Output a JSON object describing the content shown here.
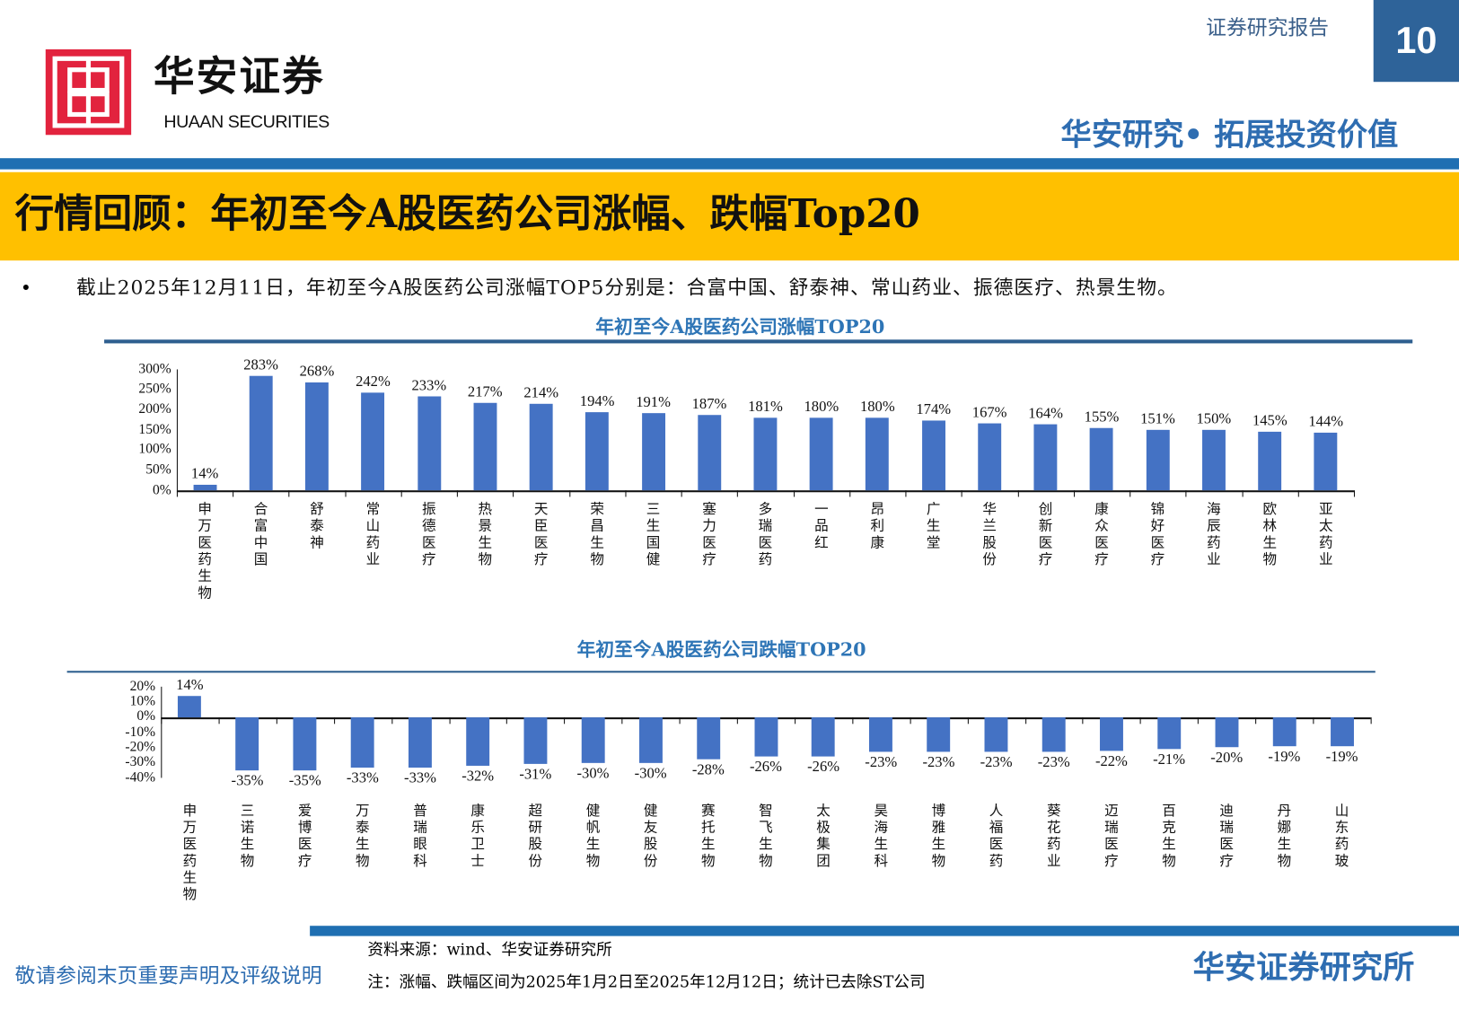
{
  "header": {
    "logo_cn": "华安证券",
    "logo_en": "HUAAN SECURITIES",
    "report_type": "证券研究报告",
    "page_number": "10",
    "slogan": "华安研究• 拓展投资价值"
  },
  "title": "行情回顾：年初至今A股医药公司涨幅、跌幅Top20",
  "summary": {
    "bullet": "•",
    "text": "截止2025年12月11日，年初至今A股医药公司涨幅TOP5分别是：合富中国、舒泰神、常山药业、振德医疗、热景生物。"
  },
  "chart_data": [
    {
      "type": "bar",
      "title": "年初至今A股医药公司涨幅TOP20",
      "ylim": [
        0,
        300
      ],
      "yticks": [
        "300%",
        "250%",
        "200%",
        "150%",
        "100%",
        "50%",
        "0%"
      ],
      "ytick_values": [
        300,
        250,
        200,
        150,
        100,
        50,
        0
      ],
      "categories": [
        "申万医药生物",
        "合富中国",
        "舒泰神",
        "常山药业",
        "振德医疗",
        "热景生物",
        "天臣医疗",
        "荣昌生物",
        "三生国健",
        "塞力医疗",
        "多瑞医药",
        "一品红",
        "昂利康",
        "广生堂",
        "华兰股份",
        "创新医疗",
        "康众医疗",
        "锦好医疗",
        "海辰药业",
        "欧林生物",
        "亚太药业"
      ],
      "values": [
        14,
        283,
        268,
        242,
        233,
        217,
        214,
        194,
        191,
        187,
        181,
        180,
        180,
        174,
        167,
        164,
        155,
        151,
        150,
        145,
        144
      ],
      "labels": [
        "14%",
        "283%",
        "268%",
        "242%",
        "233%",
        "217%",
        "214%",
        "194%",
        "191%",
        "187%",
        "181%",
        "180%",
        "180%",
        "174%",
        "167%",
        "164%",
        "155%",
        "151%",
        "150%",
        "145%",
        "144%"
      ],
      "color": "#4472c4"
    },
    {
      "type": "bar",
      "title": "年初至今A股医药公司跌幅TOP20",
      "ylim": [
        -40,
        20
      ],
      "yticks": [
        "20%",
        "10%",
        "0%",
        "-10%",
        "-20%",
        "-30%",
        "-40%"
      ],
      "ytick_values": [
        20,
        10,
        0,
        -10,
        -20,
        -30,
        -40
      ],
      "categories": [
        "申万医药生物",
        "三诺生物",
        "爱博医疗",
        "万泰生物",
        "普瑞眼科",
        "康乐卫士",
        "超研股份",
        "健帆生物",
        "健友股份",
        "赛托生物",
        "智飞生物",
        "太极集团",
        "昊海生科",
        "博雅生物",
        "人福医药",
        "葵花药业",
        "迈瑞医疗",
        "百克生物",
        "迪瑞医疗",
        "丹娜生物",
        "山东药玻"
      ],
      "values": [
        14,
        -35,
        -35,
        -33,
        -33,
        -32,
        -31,
        -30,
        -30,
        -28,
        -26,
        -26,
        -23,
        -23,
        -23,
        -23,
        -22,
        -21,
        -20,
        -19,
        -19
      ],
      "labels": [
        "14%",
        "-35%",
        "-35%",
        "-33%",
        "-33%",
        "-32%",
        "-31%",
        "-30%",
        "-30%",
        "-28%",
        "-26%",
        "-26%",
        "-23%",
        "-23%",
        "-23%",
        "-23%",
        "-22%",
        "-21%",
        "-20%",
        "-19%",
        "-19%"
      ],
      "color": "#4472c4"
    }
  ],
  "footer": {
    "source": "资料来源：wind、华安证券研究所",
    "note": "注：涨幅、跌幅区间为2025年1月2日至2025年12月12日；统计已去除ST公司",
    "disclaimer": "敬请参阅末页重要声明及评级说明",
    "institute": "华安证券研究所"
  }
}
